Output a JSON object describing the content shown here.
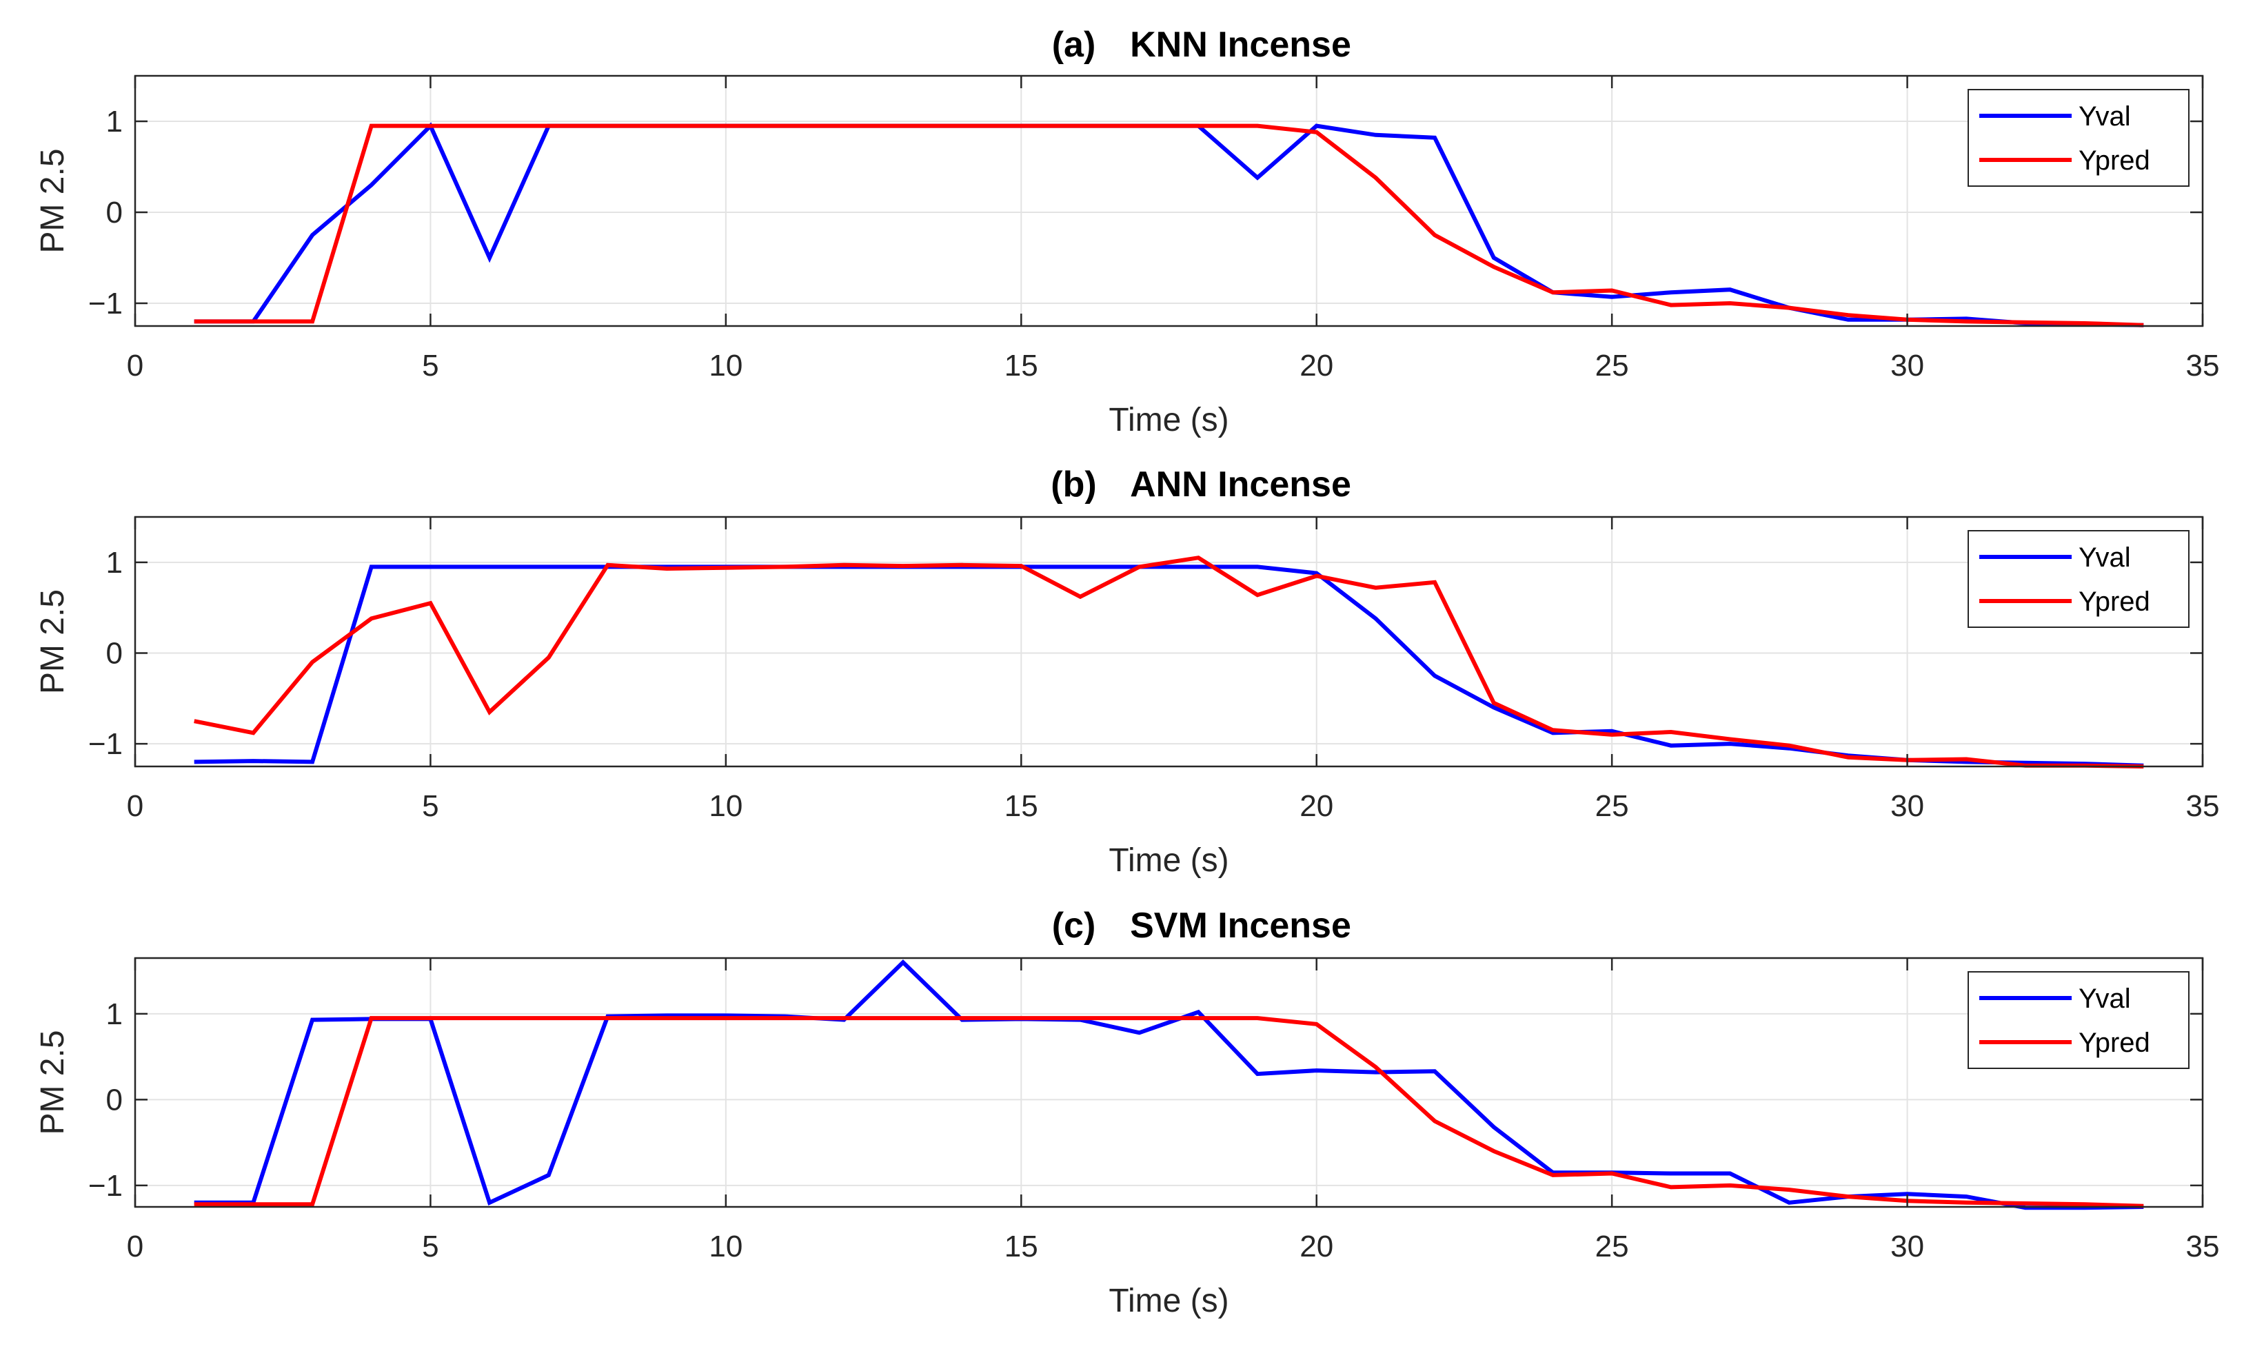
{
  "chart_data": [
    {
      "type": "line",
      "panel": "(a)",
      "title": "KNN Incense",
      "xlabel": "Time (s)",
      "ylabel": "PM 2.5",
      "xlim": [
        0,
        35
      ],
      "ylim": [
        -1.25,
        1.5
      ],
      "xticks": [
        0,
        5,
        10,
        15,
        20,
        25,
        30,
        35
      ],
      "yticks": [
        -1,
        0,
        1
      ],
      "ytick_labels": [
        "−1",
        "0",
        "1"
      ],
      "grid": true,
      "legend_position": "top-right",
      "x": [
        1,
        2,
        3,
        4,
        5,
        6,
        7,
        8,
        9,
        10,
        11,
        12,
        13,
        14,
        15,
        16,
        17,
        18,
        19,
        20,
        21,
        22,
        23,
        24,
        25,
        26,
        27,
        28,
        29,
        30,
        31,
        32,
        33,
        34
      ],
      "series": [
        {
          "name": "Yval",
          "color": "#0000ff",
          "values": [
            -1.2,
            -1.2,
            -0.25,
            0.3,
            0.95,
            -0.5,
            0.95,
            0.95,
            0.95,
            0.95,
            0.95,
            0.95,
            0.95,
            0.95,
            0.95,
            0.95,
            0.95,
            0.95,
            0.38,
            0.95,
            0.85,
            0.82,
            -0.5,
            -0.88,
            -0.93,
            -0.88,
            -0.85,
            -1.05,
            -1.18,
            -1.18,
            -1.17,
            -1.22,
            -1.23,
            -1.24
          ]
        },
        {
          "name": "Ypred",
          "color": "#ff0000",
          "values": [
            -1.2,
            -1.2,
            -1.2,
            0.95,
            0.95,
            0.95,
            0.95,
            0.95,
            0.95,
            0.95,
            0.95,
            0.95,
            0.95,
            0.95,
            0.95,
            0.95,
            0.95,
            0.95,
            0.95,
            0.88,
            0.38,
            -0.25,
            -0.6,
            -0.88,
            -0.86,
            -1.02,
            -1.0,
            -1.05,
            -1.13,
            -1.18,
            -1.2,
            -1.21,
            -1.22,
            -1.24
          ]
        }
      ]
    },
    {
      "type": "line",
      "panel": "(b)",
      "title": "ANN Incense",
      "xlabel": "Time (s)",
      "ylabel": "PM 2.5",
      "xlim": [
        0,
        35
      ],
      "ylim": [
        -1.25,
        1.5
      ],
      "xticks": [
        0,
        5,
        10,
        15,
        20,
        25,
        30,
        35
      ],
      "yticks": [
        -1,
        0,
        1
      ],
      "ytick_labels": [
        "−1",
        "0",
        "1"
      ],
      "grid": true,
      "legend_position": "top-right",
      "x": [
        1,
        2,
        3,
        4,
        5,
        6,
        7,
        8,
        9,
        10,
        11,
        12,
        13,
        14,
        15,
        16,
        17,
        18,
        19,
        20,
        21,
        22,
        23,
        24,
        25,
        26,
        27,
        28,
        29,
        30,
        31,
        32,
        33,
        34
      ],
      "series": [
        {
          "name": "Yval",
          "color": "#0000ff",
          "values": [
            -1.2,
            -1.19,
            -1.2,
            0.95,
            0.95,
            0.95,
            0.95,
            0.95,
            0.95,
            0.95,
            0.95,
            0.95,
            0.95,
            0.95,
            0.95,
            0.95,
            0.95,
            0.95,
            0.95,
            0.88,
            0.38,
            -0.25,
            -0.6,
            -0.88,
            -0.86,
            -1.02,
            -1.0,
            -1.05,
            -1.13,
            -1.18,
            -1.2,
            -1.21,
            -1.22,
            -1.24
          ]
        },
        {
          "name": "Ypred",
          "color": "#ff0000",
          "values": [
            -0.75,
            -0.88,
            -0.1,
            0.38,
            0.55,
            -0.65,
            -0.05,
            0.97,
            0.93,
            0.94,
            0.95,
            0.97,
            0.96,
            0.97,
            0.96,
            0.62,
            0.95,
            1.05,
            0.64,
            0.85,
            0.72,
            0.78,
            -0.55,
            -0.85,
            -0.9,
            -0.87,
            -0.95,
            -1.02,
            -1.15,
            -1.18,
            -1.17,
            -1.24,
            -1.24,
            -1.25
          ]
        }
      ]
    },
    {
      "type": "line",
      "panel": "(c)",
      "title": "SVM Incense",
      "xlabel": "Time (s)",
      "ylabel": "PM 2.5",
      "xlim": [
        0,
        35
      ],
      "ylim": [
        -1.25,
        1.65
      ],
      "xticks": [
        0,
        5,
        10,
        15,
        20,
        25,
        30,
        35
      ],
      "yticks": [
        -1,
        0,
        1
      ],
      "ytick_labels": [
        "−1",
        "0",
        "1"
      ],
      "grid": true,
      "legend_position": "top-right",
      "x": [
        1,
        2,
        3,
        4,
        5,
        6,
        7,
        8,
        9,
        10,
        11,
        12,
        13,
        14,
        15,
        16,
        17,
        18,
        19,
        20,
        21,
        22,
        23,
        24,
        25,
        26,
        27,
        28,
        29,
        30,
        31,
        32,
        33,
        34
      ],
      "series": [
        {
          "name": "Yval",
          "color": "#0000ff",
          "values": [
            -1.2,
            -1.2,
            0.93,
            0.94,
            0.94,
            -1.2,
            -0.88,
            0.97,
            0.98,
            0.98,
            0.97,
            0.93,
            1.6,
            0.93,
            0.94,
            0.93,
            0.78,
            1.02,
            0.3,
            0.34,
            0.32,
            0.33,
            -0.32,
            -0.85,
            -0.85,
            -0.86,
            -0.86,
            -1.2,
            -1.13,
            -1.1,
            -1.13,
            -1.26,
            -1.26,
            -1.25
          ]
        },
        {
          "name": "Ypred",
          "color": "#ff0000",
          "values": [
            -1.22,
            -1.22,
            -1.22,
            0.95,
            0.95,
            0.95,
            0.95,
            0.95,
            0.95,
            0.95,
            0.95,
            0.95,
            0.95,
            0.95,
            0.95,
            0.95,
            0.95,
            0.95,
            0.95,
            0.88,
            0.38,
            -0.25,
            -0.6,
            -0.88,
            -0.86,
            -1.02,
            -1.0,
            -1.05,
            -1.13,
            -1.18,
            -1.2,
            -1.21,
            -1.22,
            -1.24
          ]
        }
      ]
    }
  ]
}
